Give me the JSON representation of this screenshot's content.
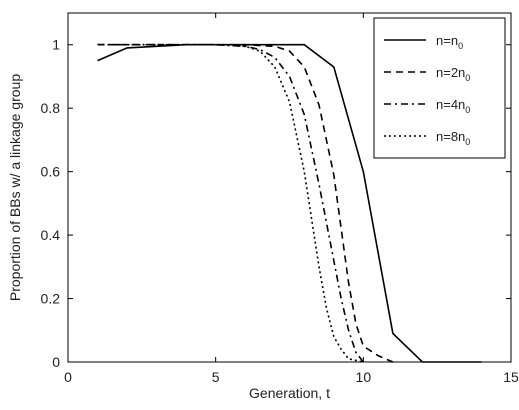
{
  "chart_data": {
    "type": "line",
    "xlabel": "Generation, t",
    "ylabel": "Proportion of BBs w/ a linkage group",
    "xlim": [
      0,
      15
    ],
    "ylim": [
      0,
      1.1
    ],
    "xticks": [
      "0",
      "5",
      "10",
      "15"
    ],
    "yticks": [
      "0",
      "0.2",
      "0.4",
      "0.6",
      "0.8",
      "1"
    ],
    "grid": false,
    "legend_position": "top-right",
    "series": [
      {
        "name": "n=n",
        "name_sub": "0",
        "dash": "solid",
        "x": [
          1,
          2,
          3,
          4,
          5,
          6,
          7,
          8,
          9,
          10,
          11,
          12,
          13,
          14
        ],
        "y": [
          0.95,
          0.99,
          0.995,
          1.0,
          1.0,
          1.0,
          1.0,
          1.0,
          0.93,
          0.6,
          0.09,
          0.0,
          0.0,
          0.0
        ]
      },
      {
        "name": "n=2n",
        "name_sub": "0",
        "dash": "dashed",
        "x": [
          1,
          2,
          3,
          4,
          5,
          6,
          7,
          7.5,
          8,
          8.5,
          9,
          9.25,
          9.5,
          9.75,
          10,
          10.5,
          11
        ],
        "y": [
          1.0,
          1.0,
          1.0,
          1.0,
          1.0,
          1.0,
          0.995,
          0.98,
          0.93,
          0.81,
          0.59,
          0.42,
          0.25,
          0.12,
          0.05,
          0.02,
          0.0
        ]
      },
      {
        "name": "n=4n",
        "name_sub": "0",
        "dash": "dashdot",
        "x": [
          1,
          2,
          3,
          4,
          5,
          6,
          6.5,
          7,
          7.5,
          8,
          8.5,
          9,
          9.25,
          9.5,
          9.75,
          10
        ],
        "y": [
          1.0,
          1.0,
          1.0,
          1.0,
          1.0,
          0.995,
          0.985,
          0.96,
          0.9,
          0.78,
          0.56,
          0.32,
          0.2,
          0.1,
          0.03,
          0.0
        ]
      },
      {
        "name": "n=8n",
        "name_sub": "0",
        "dash": "dotted",
        "x": [
          1,
          2,
          3,
          4,
          5,
          6,
          6.5,
          7,
          7.5,
          8,
          8.25,
          8.5,
          8.75,
          9,
          9.25,
          9.5,
          9.75,
          10
        ],
        "y": [
          1.0,
          1.0,
          1.0,
          1.0,
          1.0,
          0.995,
          0.98,
          0.93,
          0.82,
          0.6,
          0.45,
          0.3,
          0.17,
          0.08,
          0.04,
          0.01,
          0.005,
          0.0
        ]
      }
    ]
  }
}
